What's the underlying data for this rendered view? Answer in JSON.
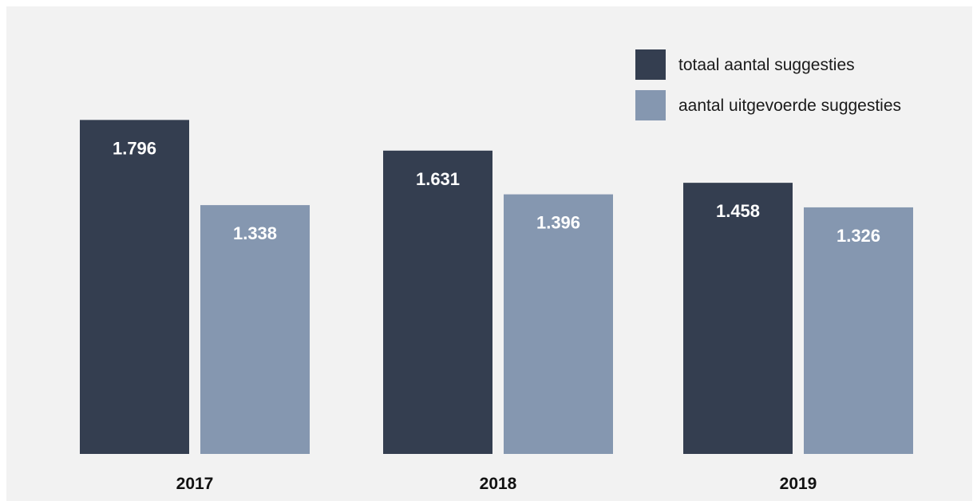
{
  "chart_data": {
    "type": "bar",
    "title": "",
    "xlabel": "",
    "ylabel": "",
    "categories": [
      "2017",
      "2018",
      "2019"
    ],
    "series": [
      {
        "name": "totaal aantal suggesties",
        "color": "#343e50",
        "values": [
          1796,
          1631,
          1458
        ],
        "labels": [
          "1.796",
          "1.631",
          "1.458"
        ]
      },
      {
        "name": "aantal uitgevoerde suggesties",
        "color": "#8597b0",
        "values": [
          1338,
          1396,
          1326
        ],
        "labels": [
          "1.338",
          "1.396",
          "1.326"
        ]
      }
    ],
    "ylim": [
      0,
      2000
    ],
    "grid": false,
    "legend_position": "top-right",
    "background": "#f2f2f2"
  }
}
